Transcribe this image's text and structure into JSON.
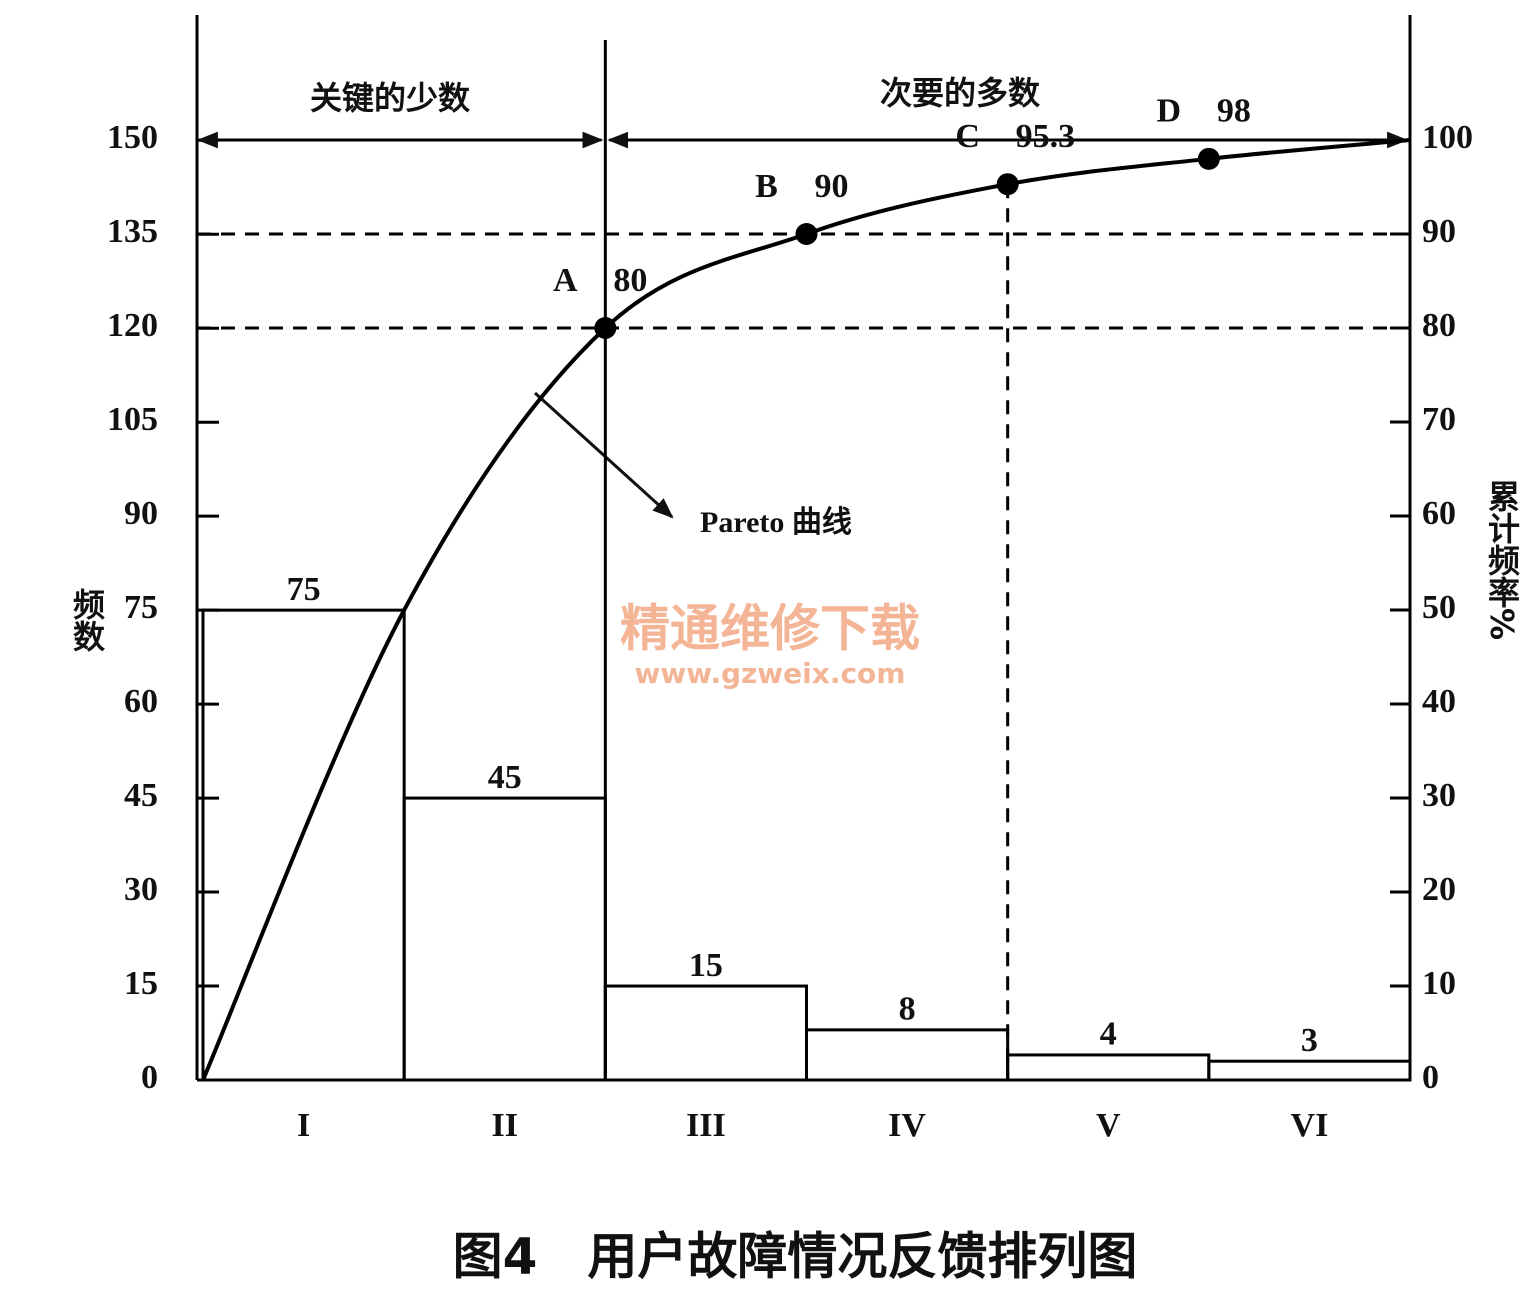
{
  "chart_data": {
    "type": "pareto",
    "title": "图4　用户故障情况反馈排列图",
    "y_label": "频数",
    "y2_label": "累计频率%",
    "region_labels": [
      "关键的少数",
      "次要的多数"
    ],
    "annotation": "Pareto 曲线",
    "watermark": [
      "精通维修下载",
      "www.gzweix.com"
    ],
    "categories": [
      "I",
      "II",
      "III",
      "IV",
      "V",
      "VI"
    ],
    "values": [
      75,
      45,
      15,
      8,
      4,
      3
    ],
    "color": "#000000",
    "ylim": [
      0,
      170
    ],
    "yticks": [
      0,
      15,
      30,
      45,
      60,
      75,
      90,
      105,
      120,
      135,
      150
    ],
    "y2lim": [
      0,
      113.3
    ],
    "y2ticks": [
      0,
      10,
      20,
      30,
      40,
      50,
      60,
      70,
      80,
      90,
      100
    ],
    "line": {
      "axis": "y2",
      "xlim": [
        0,
        6
      ],
      "x": [
        0,
        1,
        2,
        3,
        4,
        5,
        6
      ],
      "values": [
        0,
        50,
        80,
        90,
        95.3,
        98,
        100
      ],
      "point_labels": [
        null,
        null,
        "A",
        "B",
        "C",
        "D",
        null
      ]
    }
  }
}
